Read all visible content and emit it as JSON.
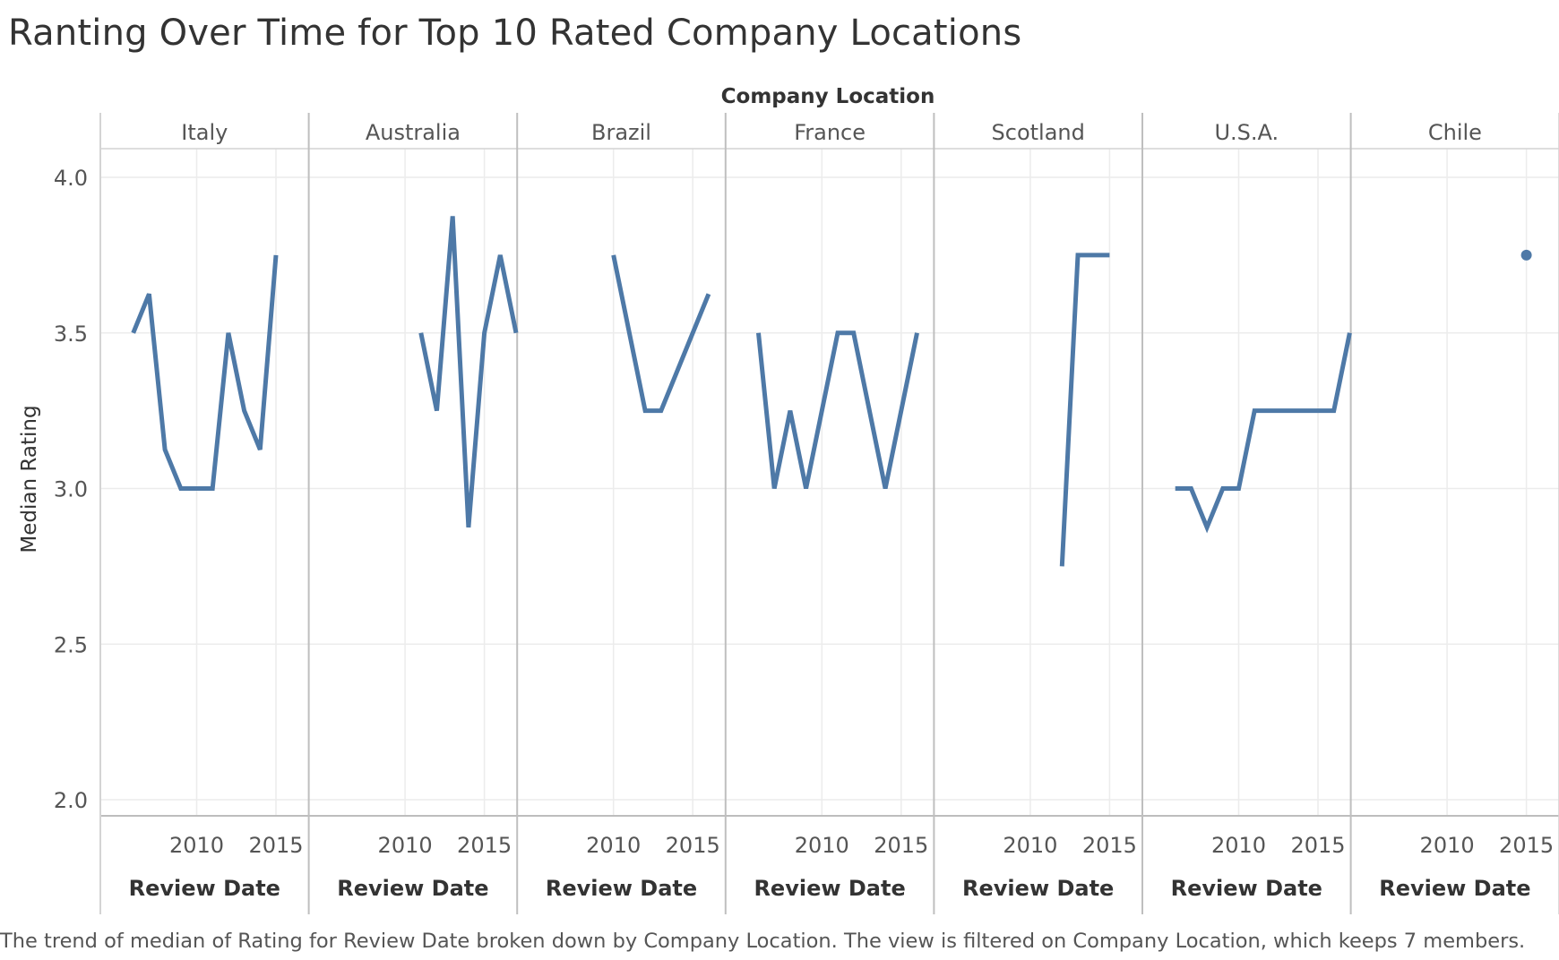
{
  "chart_data": {
    "type": "line",
    "title": "Ranting Over Time for Top 10 Rated Company Locations",
    "caption": "The trend of median of Rating for Review Date broken down by Company Location. The view is filtered on Company Location, which keeps 7 members.",
    "column_header": "Company Location",
    "xlabel": "Review Date",
    "ylabel": "Median Rating",
    "ylim": [
      2.0,
      4.0
    ],
    "y_ticks": [
      "2.0",
      "2.5",
      "3.0",
      "3.5",
      "4.0"
    ],
    "xlim": [
      2005,
      2018
    ],
    "x_ticks": [
      "2010",
      "2015"
    ],
    "grid": true,
    "line_color": "#4e79a7",
    "panels": [
      {
        "name": "Italy",
        "points": [
          [
            2006,
            3.5
          ],
          [
            2007,
            3.625
          ],
          [
            2008,
            3.125
          ],
          [
            2009,
            3.0
          ],
          [
            2010,
            3.0
          ],
          [
            2011,
            3.0
          ],
          [
            2012,
            3.5
          ],
          [
            2013,
            3.25
          ],
          [
            2014,
            3.125
          ],
          [
            2015,
            3.75
          ]
        ]
      },
      {
        "name": "Australia",
        "points": [
          [
            2011,
            3.5
          ],
          [
            2012,
            3.25
          ],
          [
            2013,
            3.875
          ],
          [
            2014,
            2.875
          ],
          [
            2015,
            3.5
          ],
          [
            2016,
            3.75
          ],
          [
            2017,
            3.5
          ]
        ]
      },
      {
        "name": "Brazil",
        "points": [
          [
            2010,
            3.75
          ],
          [
            2012,
            3.25
          ],
          [
            2013,
            3.25
          ],
          [
            2016,
            3.625
          ]
        ]
      },
      {
        "name": "France",
        "points": [
          [
            2006,
            3.5
          ],
          [
            2007,
            3.0
          ],
          [
            2008,
            3.25
          ],
          [
            2009,
            3.0
          ],
          [
            2011,
            3.5
          ],
          [
            2012,
            3.5
          ],
          [
            2014,
            3.0
          ],
          [
            2016,
            3.5
          ]
        ]
      },
      {
        "name": "Scotland",
        "points": [
          [
            2012,
            2.75
          ],
          [
            2013,
            3.75
          ],
          [
            2014,
            3.75
          ],
          [
            2015,
            3.75
          ]
        ]
      },
      {
        "name": "U.S.A.",
        "points": [
          [
            2006,
            3.0
          ],
          [
            2007,
            3.0
          ],
          [
            2008,
            2.875
          ],
          [
            2009,
            3.0
          ],
          [
            2010,
            3.0
          ],
          [
            2011,
            3.25
          ],
          [
            2012,
            3.25
          ],
          [
            2013,
            3.25
          ],
          [
            2014,
            3.25
          ],
          [
            2015,
            3.25
          ],
          [
            2016,
            3.25
          ],
          [
            2017,
            3.5
          ]
        ]
      },
      {
        "name": "Chile",
        "points": [
          [
            2015,
            3.75
          ]
        ]
      }
    ]
  }
}
